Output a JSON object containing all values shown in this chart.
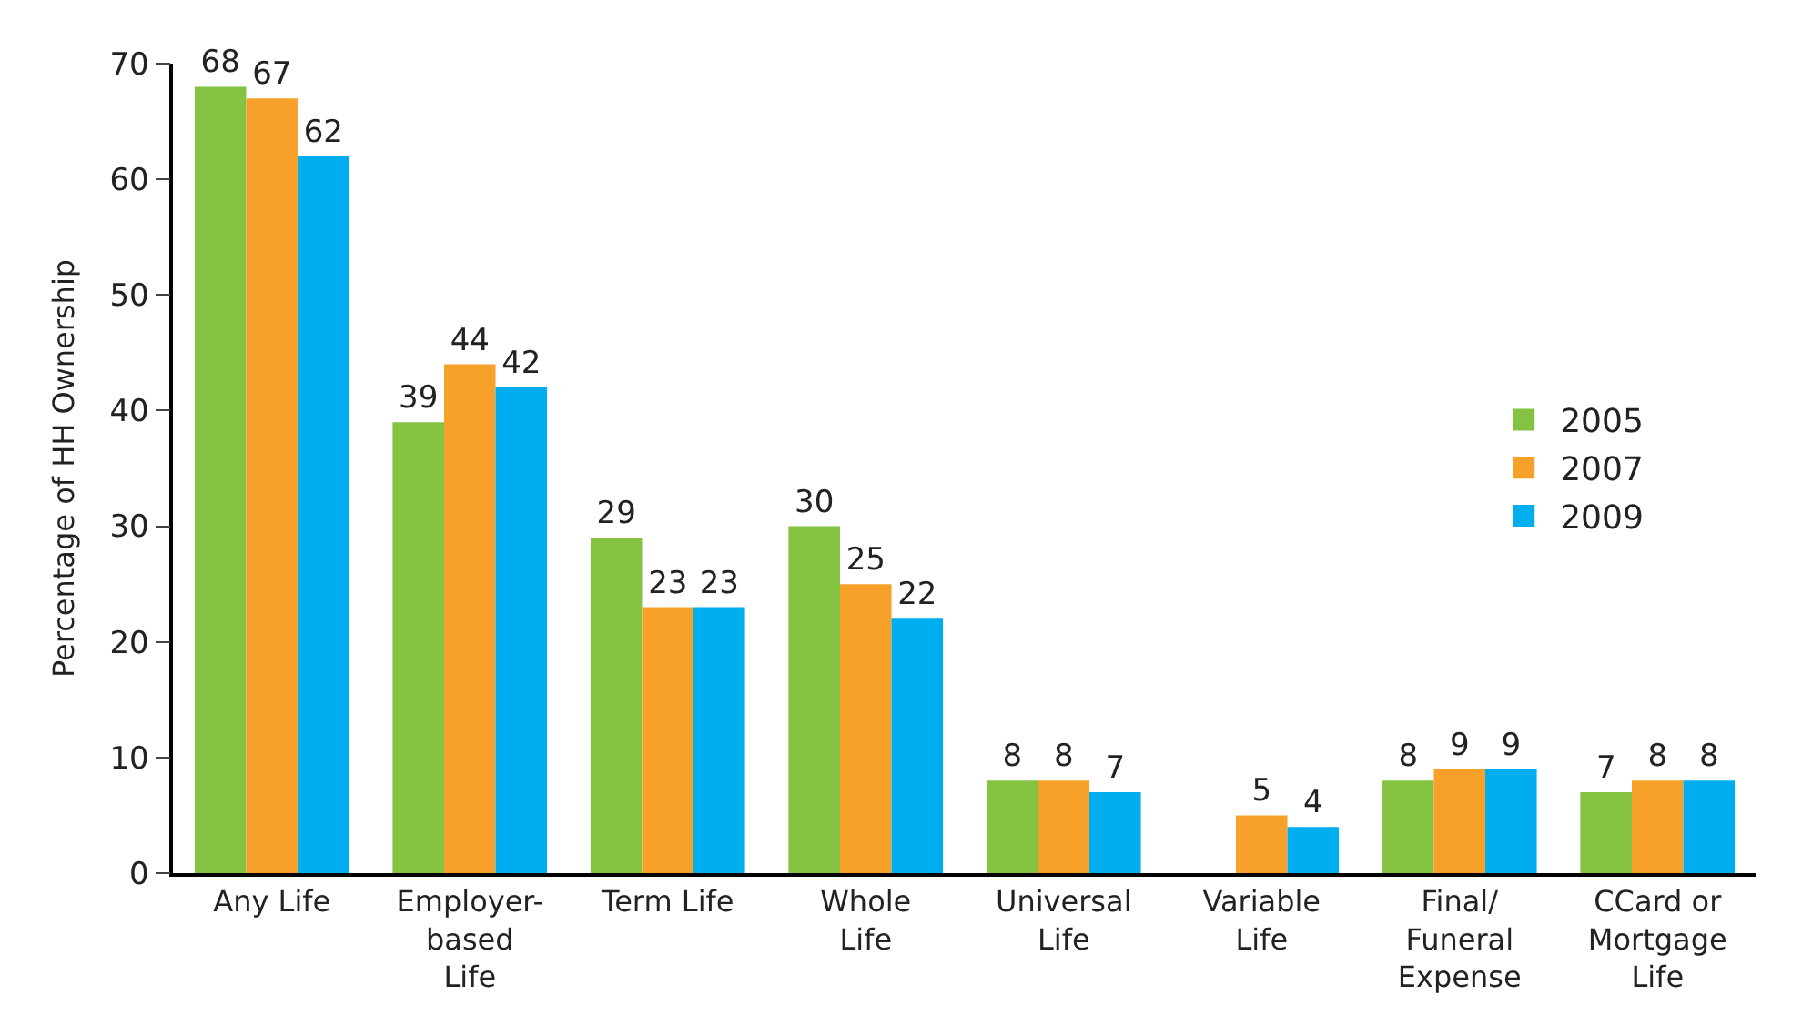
{
  "chart_data": {
    "type": "bar",
    "ylabel": "Percentage of HH Ownership",
    "categories": [
      "Any Life",
      "Employer-\nbased\nLife",
      "Term Life",
      "Whole\nLife",
      "Universal\nLife",
      "Variable\nLife",
      "Final/\nFuneral\nExpense",
      "CCard or\nMortgage\nLife"
    ],
    "series": [
      {
        "name": "2005",
        "color": "#84c341",
        "values": [
          68,
          39,
          29,
          30,
          8,
          null,
          8,
          7
        ]
      },
      {
        "name": "2007",
        "color": "#f8a12a",
        "values": [
          67,
          44,
          23,
          25,
          8,
          5,
          9,
          8
        ]
      },
      {
        "name": "2009",
        "color": "#00aeef",
        "values": [
          62,
          42,
          23,
          22,
          7,
          4,
          9,
          8
        ]
      }
    ],
    "ylim": [
      0,
      70
    ],
    "yticks": [
      0,
      10,
      20,
      30,
      40,
      50,
      60,
      70
    ],
    "legend": "right",
    "data_labels": true
  }
}
